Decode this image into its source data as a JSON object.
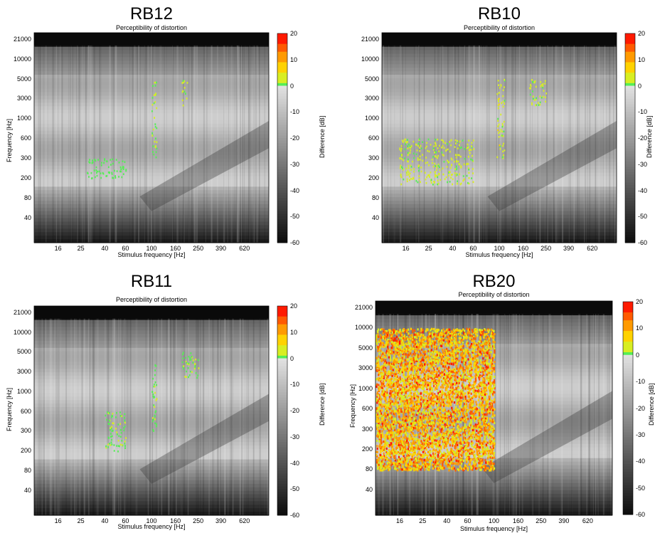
{
  "subtitle": "Perceptibility of distortion",
  "xlabel": "Stimulus frequency [Hz]",
  "ylabel": "Frequency [Hz]",
  "colorbar_label": "Difference [dB]",
  "chart_data": [
    {
      "type": "heatmap",
      "title": "RB12",
      "subtitle": "Perceptibility of distortion",
      "xlabel": "Stimulus frequency [Hz]",
      "ylabel": "Frequency [Hz]",
      "x_ticks": [
        "16",
        "25",
        "40",
        "60",
        "100",
        "160",
        "250",
        "390",
        "620"
      ],
      "y_ticks": [
        "21000",
        "10000",
        "5000",
        "3000",
        "1000",
        "600",
        "300",
        "200",
        "80",
        "40"
      ],
      "colorbar": {
        "label": "Difference [dB]",
        "range": [
          -60,
          20
        ],
        "ticks": [
          "20",
          "10",
          "0",
          "-10",
          "-20",
          "-30",
          "-40",
          "-50",
          "-60"
        ]
      },
      "perceptible_regions": [
        {
          "x_range": [
            100,
            110
          ],
          "y_range": [
            300,
            5000
          ],
          "level_db": 2
        },
        {
          "x_range": [
            180,
            200
          ],
          "y_range": [
            2000,
            5000
          ],
          "level_db": 4
        },
        {
          "x_range": [
            28,
            60
          ],
          "y_range": [
            200,
            300
          ],
          "level_db": 1
        }
      ]
    },
    {
      "type": "heatmap",
      "title": "RB10",
      "subtitle": "Perceptibility of distortion",
      "xlabel": "Stimulus frequency [Hz]",
      "ylabel": "",
      "x_ticks": [
        "16",
        "25",
        "40",
        "60",
        "100",
        "160",
        "250",
        "390",
        "620"
      ],
      "y_ticks": [
        "21000",
        "10000",
        "5000",
        "3000",
        "1000",
        "600",
        "300",
        "200",
        "80",
        "40"
      ],
      "colorbar": {
        "label": "Difference [dB]",
        "range": [
          -60,
          20
        ],
        "ticks": [
          "20",
          "10",
          "0",
          "-10",
          "-20",
          "-30",
          "-40",
          "-50",
          "-60"
        ]
      },
      "perceptible_regions": [
        {
          "x_range": [
            95,
            110
          ],
          "y_range": [
            300,
            5000
          ],
          "level_db": 5
        },
        {
          "x_range": [
            14,
            60
          ],
          "y_range": [
            150,
            600
          ],
          "level_db": 4
        },
        {
          "x_range": [
            180,
            250
          ],
          "y_range": [
            2000,
            5000
          ],
          "level_db": 3
        }
      ]
    },
    {
      "type": "heatmap",
      "title": "RB11",
      "subtitle": "Perceptibility of distortion",
      "xlabel": "Stimulus frequency [Hz]",
      "ylabel": "Frequency [Hz]",
      "x_ticks": [
        "16",
        "25",
        "40",
        "60",
        "100",
        "160",
        "250",
        "390",
        "620"
      ],
      "y_ticks": [
        "21000",
        "10000",
        "5000",
        "3000",
        "1000",
        "600",
        "300",
        "200",
        "80",
        "40"
      ],
      "colorbar": {
        "label": "Difference [dB]",
        "range": [
          -60,
          20
        ],
        "ticks": [
          "20",
          "10",
          "0",
          "-10",
          "-20",
          "-30",
          "-40",
          "-50",
          "-60"
        ]
      },
      "perceptible_regions": [
        {
          "x_range": [
            100,
            110
          ],
          "y_range": [
            300,
            5000
          ],
          "level_db": 2
        },
        {
          "x_range": [
            40,
            60
          ],
          "y_range": [
            200,
            600
          ],
          "level_db": 2
        },
        {
          "x_range": [
            180,
            250
          ],
          "y_range": [
            2000,
            5000
          ],
          "level_db": 2
        }
      ]
    },
    {
      "type": "heatmap",
      "title": "RB20",
      "subtitle": "Perceptibility of distortion",
      "xlabel": "Stimulus frequency [Hz]",
      "ylabel": "Frequency [Hz]",
      "x_ticks": [
        "16",
        "25",
        "40",
        "60",
        "100",
        "160",
        "250",
        "390",
        "620"
      ],
      "y_ticks": [
        "21000",
        "10000",
        "5000",
        "3000",
        "1000",
        "600",
        "300",
        "200",
        "80",
        "40"
      ],
      "colorbar": {
        "label": "Difference [dB]",
        "range": [
          -60,
          20
        ],
        "ticks": [
          "20",
          "10",
          "0",
          "-10",
          "-20",
          "-30",
          "-40",
          "-50",
          "-60"
        ]
      },
      "perceptible_regions": [
        {
          "x_range": [
            10,
            100
          ],
          "y_range": [
            80,
            10000
          ],
          "level_db": 18
        }
      ]
    }
  ]
}
